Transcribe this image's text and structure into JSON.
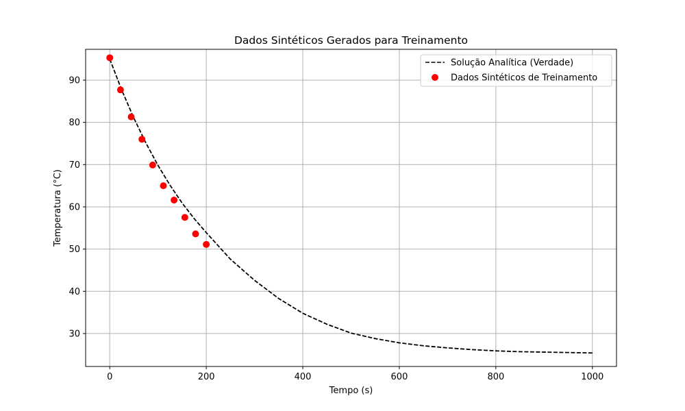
{
  "chart_data": {
    "type": "line",
    "title": "Dados Sintéticos Gerados para Treinamento",
    "xlabel": "Tempo (s)",
    "ylabel": "Temperatura (°C)",
    "xlim": [
      -50,
      1050
    ],
    "ylim": [
      22.2,
      97.3
    ],
    "xticks": [
      0,
      200,
      400,
      600,
      800,
      1000
    ],
    "yticks": [
      30,
      40,
      50,
      60,
      70,
      80,
      90
    ],
    "grid": true,
    "legend_position": "top-right",
    "colors": {
      "line": "#000000",
      "points": "#ff0000",
      "grid": "#b0b0b0"
    },
    "series": [
      {
        "name": "Solução Analítica (Verdade)",
        "kind": "line",
        "style": "dashed",
        "x": [
          0,
          25,
          50,
          75,
          100,
          125,
          150,
          175,
          200,
          250,
          300,
          350,
          400,
          450,
          500,
          550,
          600,
          650,
          700,
          750,
          800,
          850,
          900,
          950,
          1000
        ],
        "y": [
          95.0,
          87.6,
          81.0,
          75.1,
          69.8,
          65.1,
          60.9,
          57.2,
          53.9,
          47.6,
          42.6,
          38.3,
          34.8,
          32.2,
          30.1,
          28.8,
          27.8,
          27.1,
          26.6,
          26.2,
          25.9,
          25.7,
          25.6,
          25.5,
          25.4
        ]
      },
      {
        "name": "Dados Sintéticos de Treinamento",
        "kind": "scatter",
        "x": [
          0,
          22.2,
          44.4,
          66.7,
          88.9,
          111.1,
          133.3,
          155.6,
          177.8,
          200
        ],
        "y": [
          95.3,
          87.7,
          81.3,
          76.0,
          69.9,
          65.0,
          61.6,
          57.5,
          53.6,
          51.1
        ]
      }
    ]
  }
}
